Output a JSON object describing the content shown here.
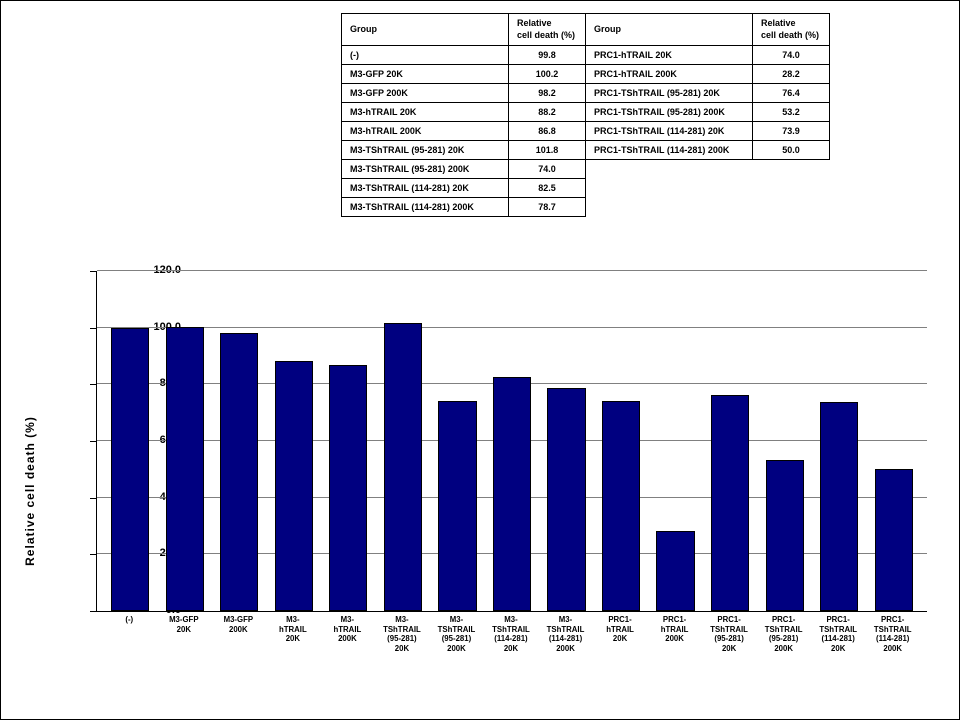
{
  "table": {
    "headers": [
      "Group",
      "Relative\ncell death (%)",
      "Group",
      "Relative\ncell death (%)"
    ],
    "rows": [
      [
        "(-)",
        "99.8",
        "PRC1-hTRAIL 20K",
        "74.0"
      ],
      [
        "M3-GFP 20K",
        "100.2",
        "PRC1-hTRAIL 200K",
        "28.2"
      ],
      [
        "M3-GFP 200K",
        "98.2",
        "PRC1-TShTRAIL (95-281) 20K",
        "76.4"
      ],
      [
        "M3-hTRAIL 20K",
        "88.2",
        "PRC1-TShTRAIL (95-281) 200K",
        "53.2"
      ],
      [
        "M3-hTRAIL 200K",
        "86.8",
        "PRC1-TShTRAIL (114-281) 20K",
        "73.9"
      ],
      [
        "M3-TShTRAIL (95-281)  20K",
        "101.8",
        "PRC1-TShTRAIL (114-281) 200K",
        "50.0"
      ],
      [
        "M3-TShTRAIL (95-281)  200K",
        "74.0",
        "",
        ""
      ],
      [
        "M3-TShTRAIL (114-281) 20K",
        "82.5",
        "",
        ""
      ],
      [
        "M3-TShTRAIL (114-281) 200K",
        "78.7",
        "",
        ""
      ]
    ]
  },
  "chart": {
    "type": "bar",
    "y_axis_title": "Relative cell death (%)",
    "ylim": [
      0,
      120
    ],
    "ytick_step": 20,
    "ytick_labels": [
      "0.0",
      "20.0",
      "40.0",
      "60.0",
      "80.0",
      "100.0",
      "120.0"
    ],
    "bar_color": "#000080",
    "bar_border": "#000000",
    "grid_color": "#808080",
    "background_color": "#ffffff",
    "title_fontsize": 12,
    "label_fontsize": 8,
    "bar_width": 0.7,
    "categories": [
      "(-)",
      "M3-GFP 20K",
      "M3-GFP 200K",
      "M3- hTRAIL 20K",
      "M3- hTRAIL 200K",
      "M3- TShTRAIL (95-281) 20K",
      "M3- TShTRAIL (95-281) 200K",
      "M3- TShTRAIL (114-281) 20K",
      "M3- TShTRAIL (114-281) 200K",
      "PRC1- hTRAIL 20K",
      "PRC1- hTRAIL 200K",
      "PRC1- TShTRAIL (95-281) 20K",
      "PRC1- TShTRAIL (95-281) 200K",
      "PRC1- TShTRAIL (114-281) 20K",
      "PRC1- TShTRAIL (114-281) 200K"
    ],
    "values": [
      99.8,
      100.2,
      98.2,
      88.2,
      86.8,
      101.8,
      74.0,
      82.5,
      78.7,
      74.0,
      28.2,
      76.4,
      53.2,
      73.9,
      50.0
    ]
  }
}
